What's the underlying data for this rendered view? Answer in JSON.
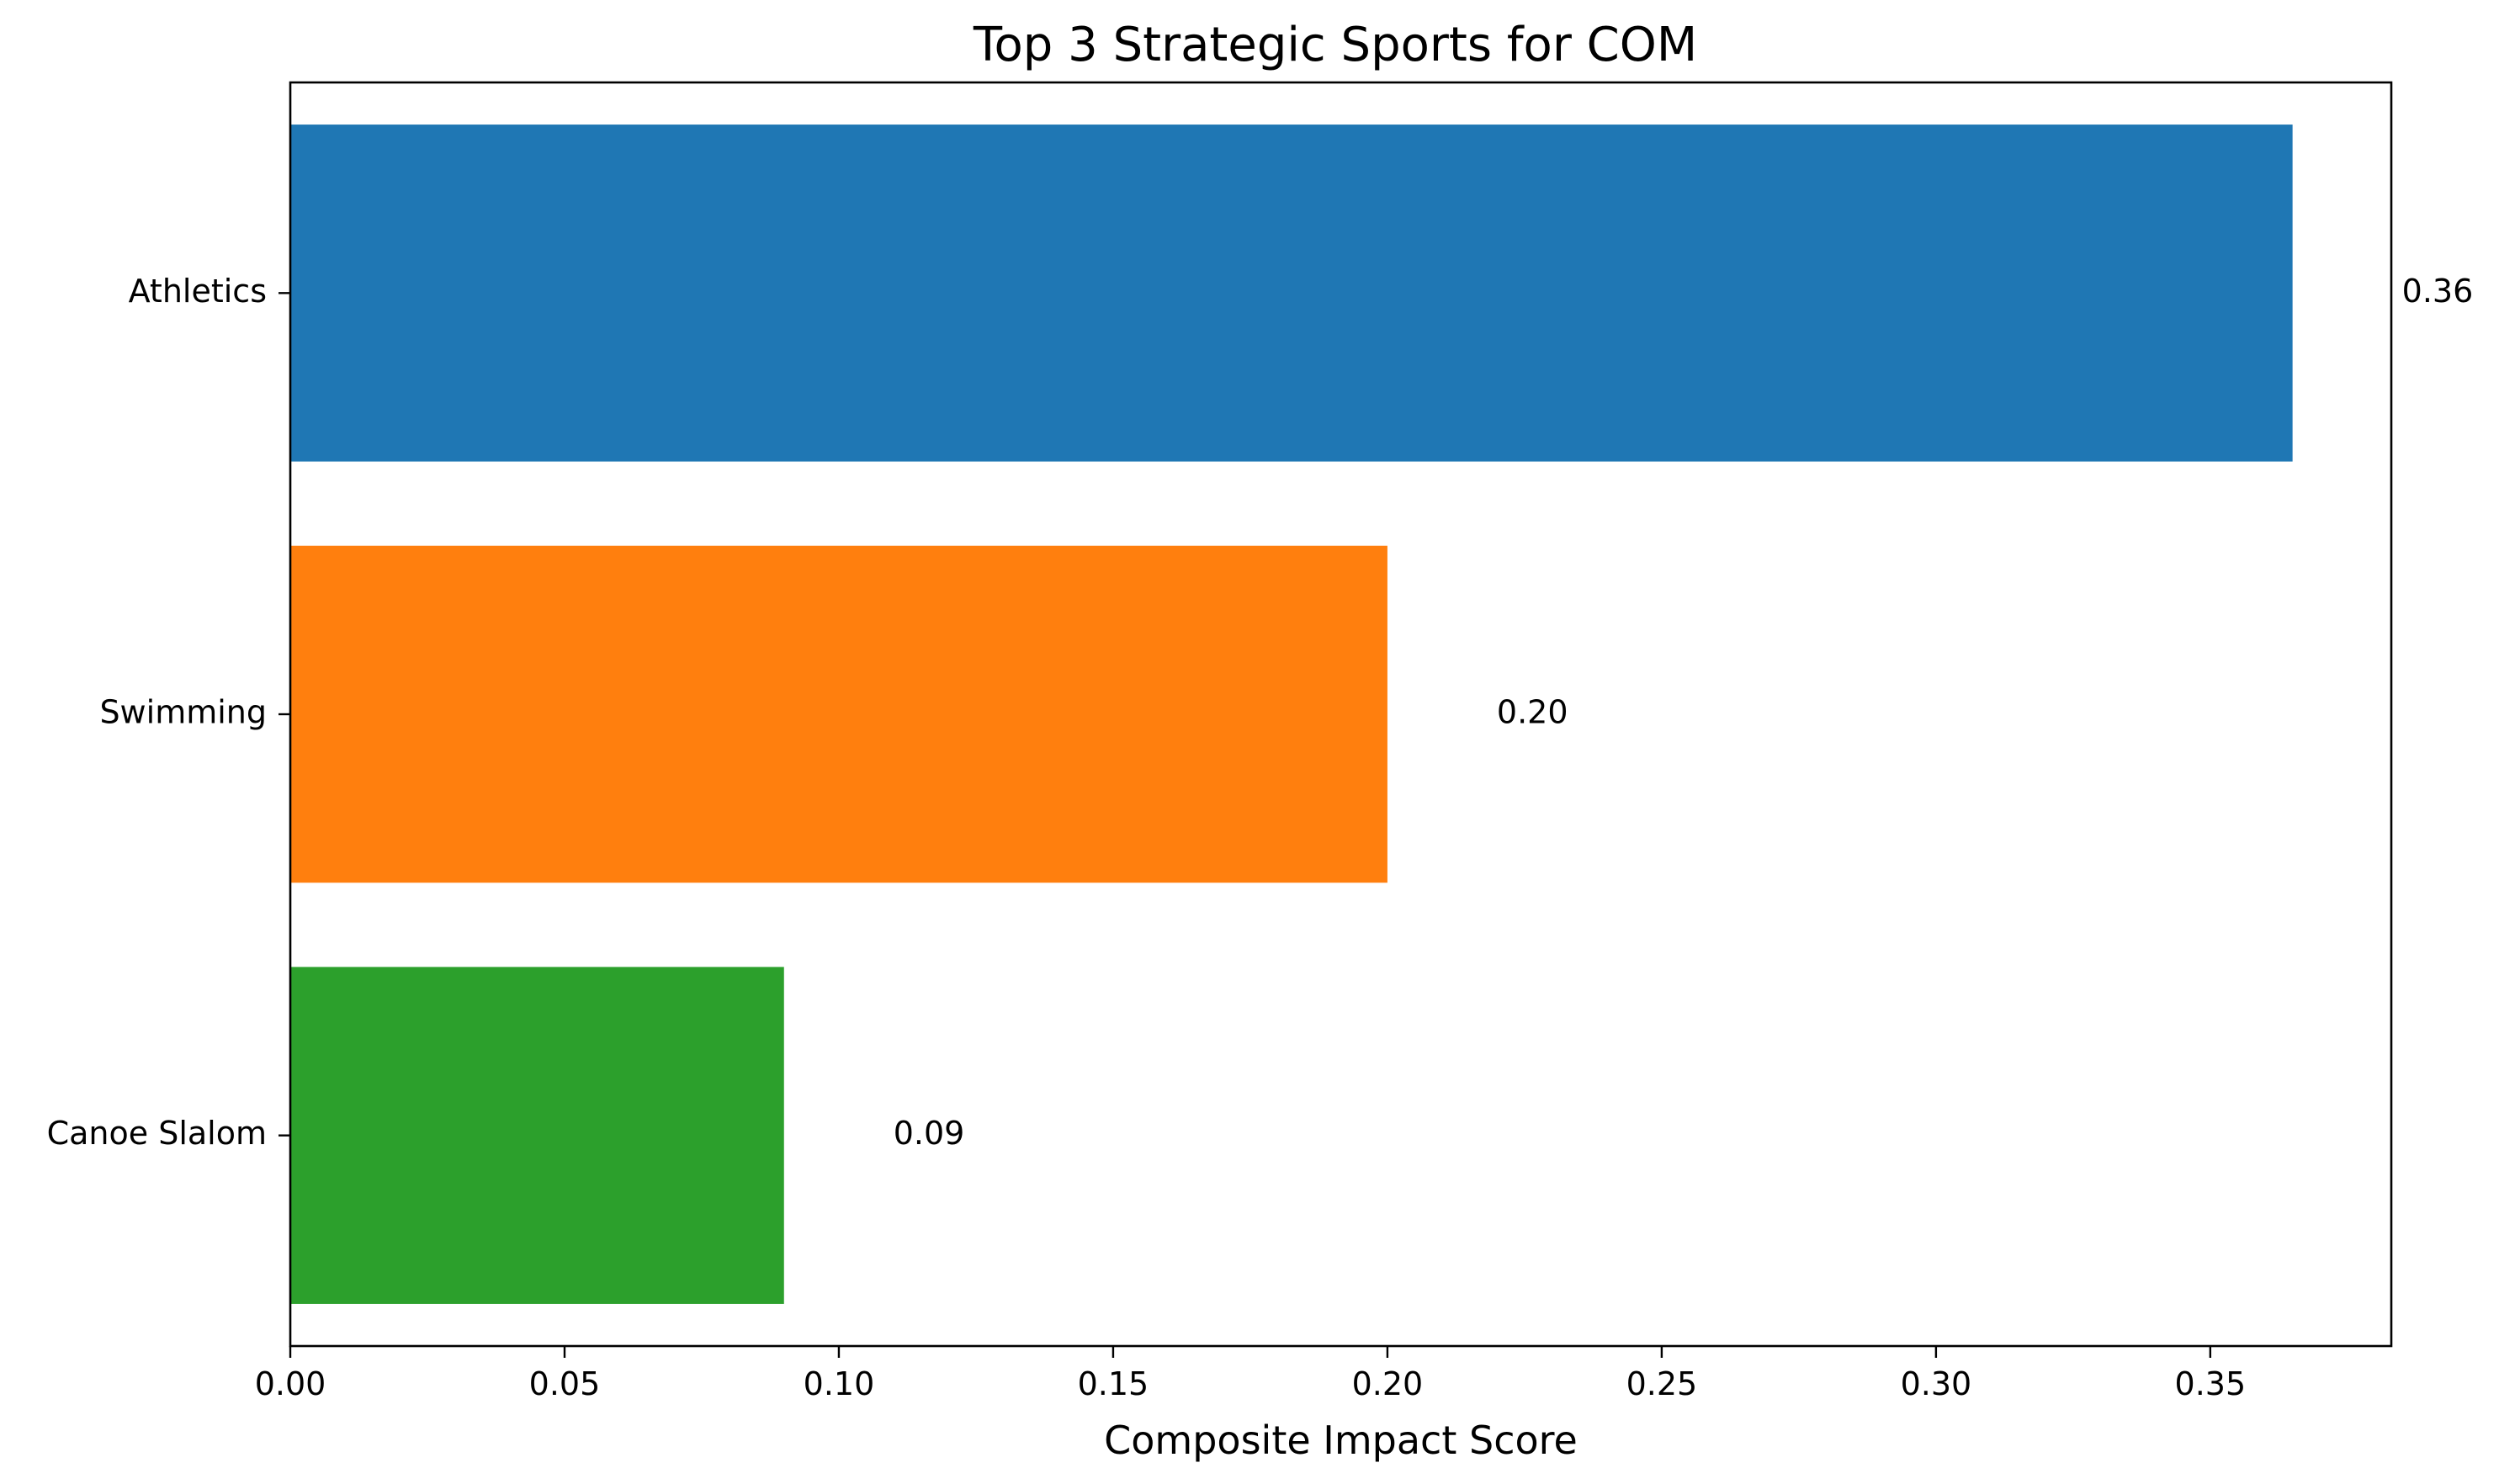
{
  "chart_data": {
    "type": "bar",
    "orientation": "horizontal",
    "title": "Top 3 Strategic Sports for COM",
    "xlabel": "Composite Impact Score",
    "ylabel": "",
    "categories": [
      "Athletics",
      "Swimming",
      "Canoe Slalom"
    ],
    "values": [
      0.365,
      0.2,
      0.09
    ],
    "value_labels": [
      "0.36",
      "0.20",
      "0.09"
    ],
    "colors": [
      "#1f77b4",
      "#ff7f0e",
      "#2ca02c"
    ],
    "xlim": [
      0,
      0.383
    ],
    "xticks": [
      0.0,
      0.05,
      0.1,
      0.15,
      0.2,
      0.25,
      0.3,
      0.35
    ],
    "xtick_labels": [
      "0.00",
      "0.05",
      "0.10",
      "0.15",
      "0.20",
      "0.25",
      "0.30",
      "0.35"
    ],
    "grid": false,
    "legend": "none"
  }
}
